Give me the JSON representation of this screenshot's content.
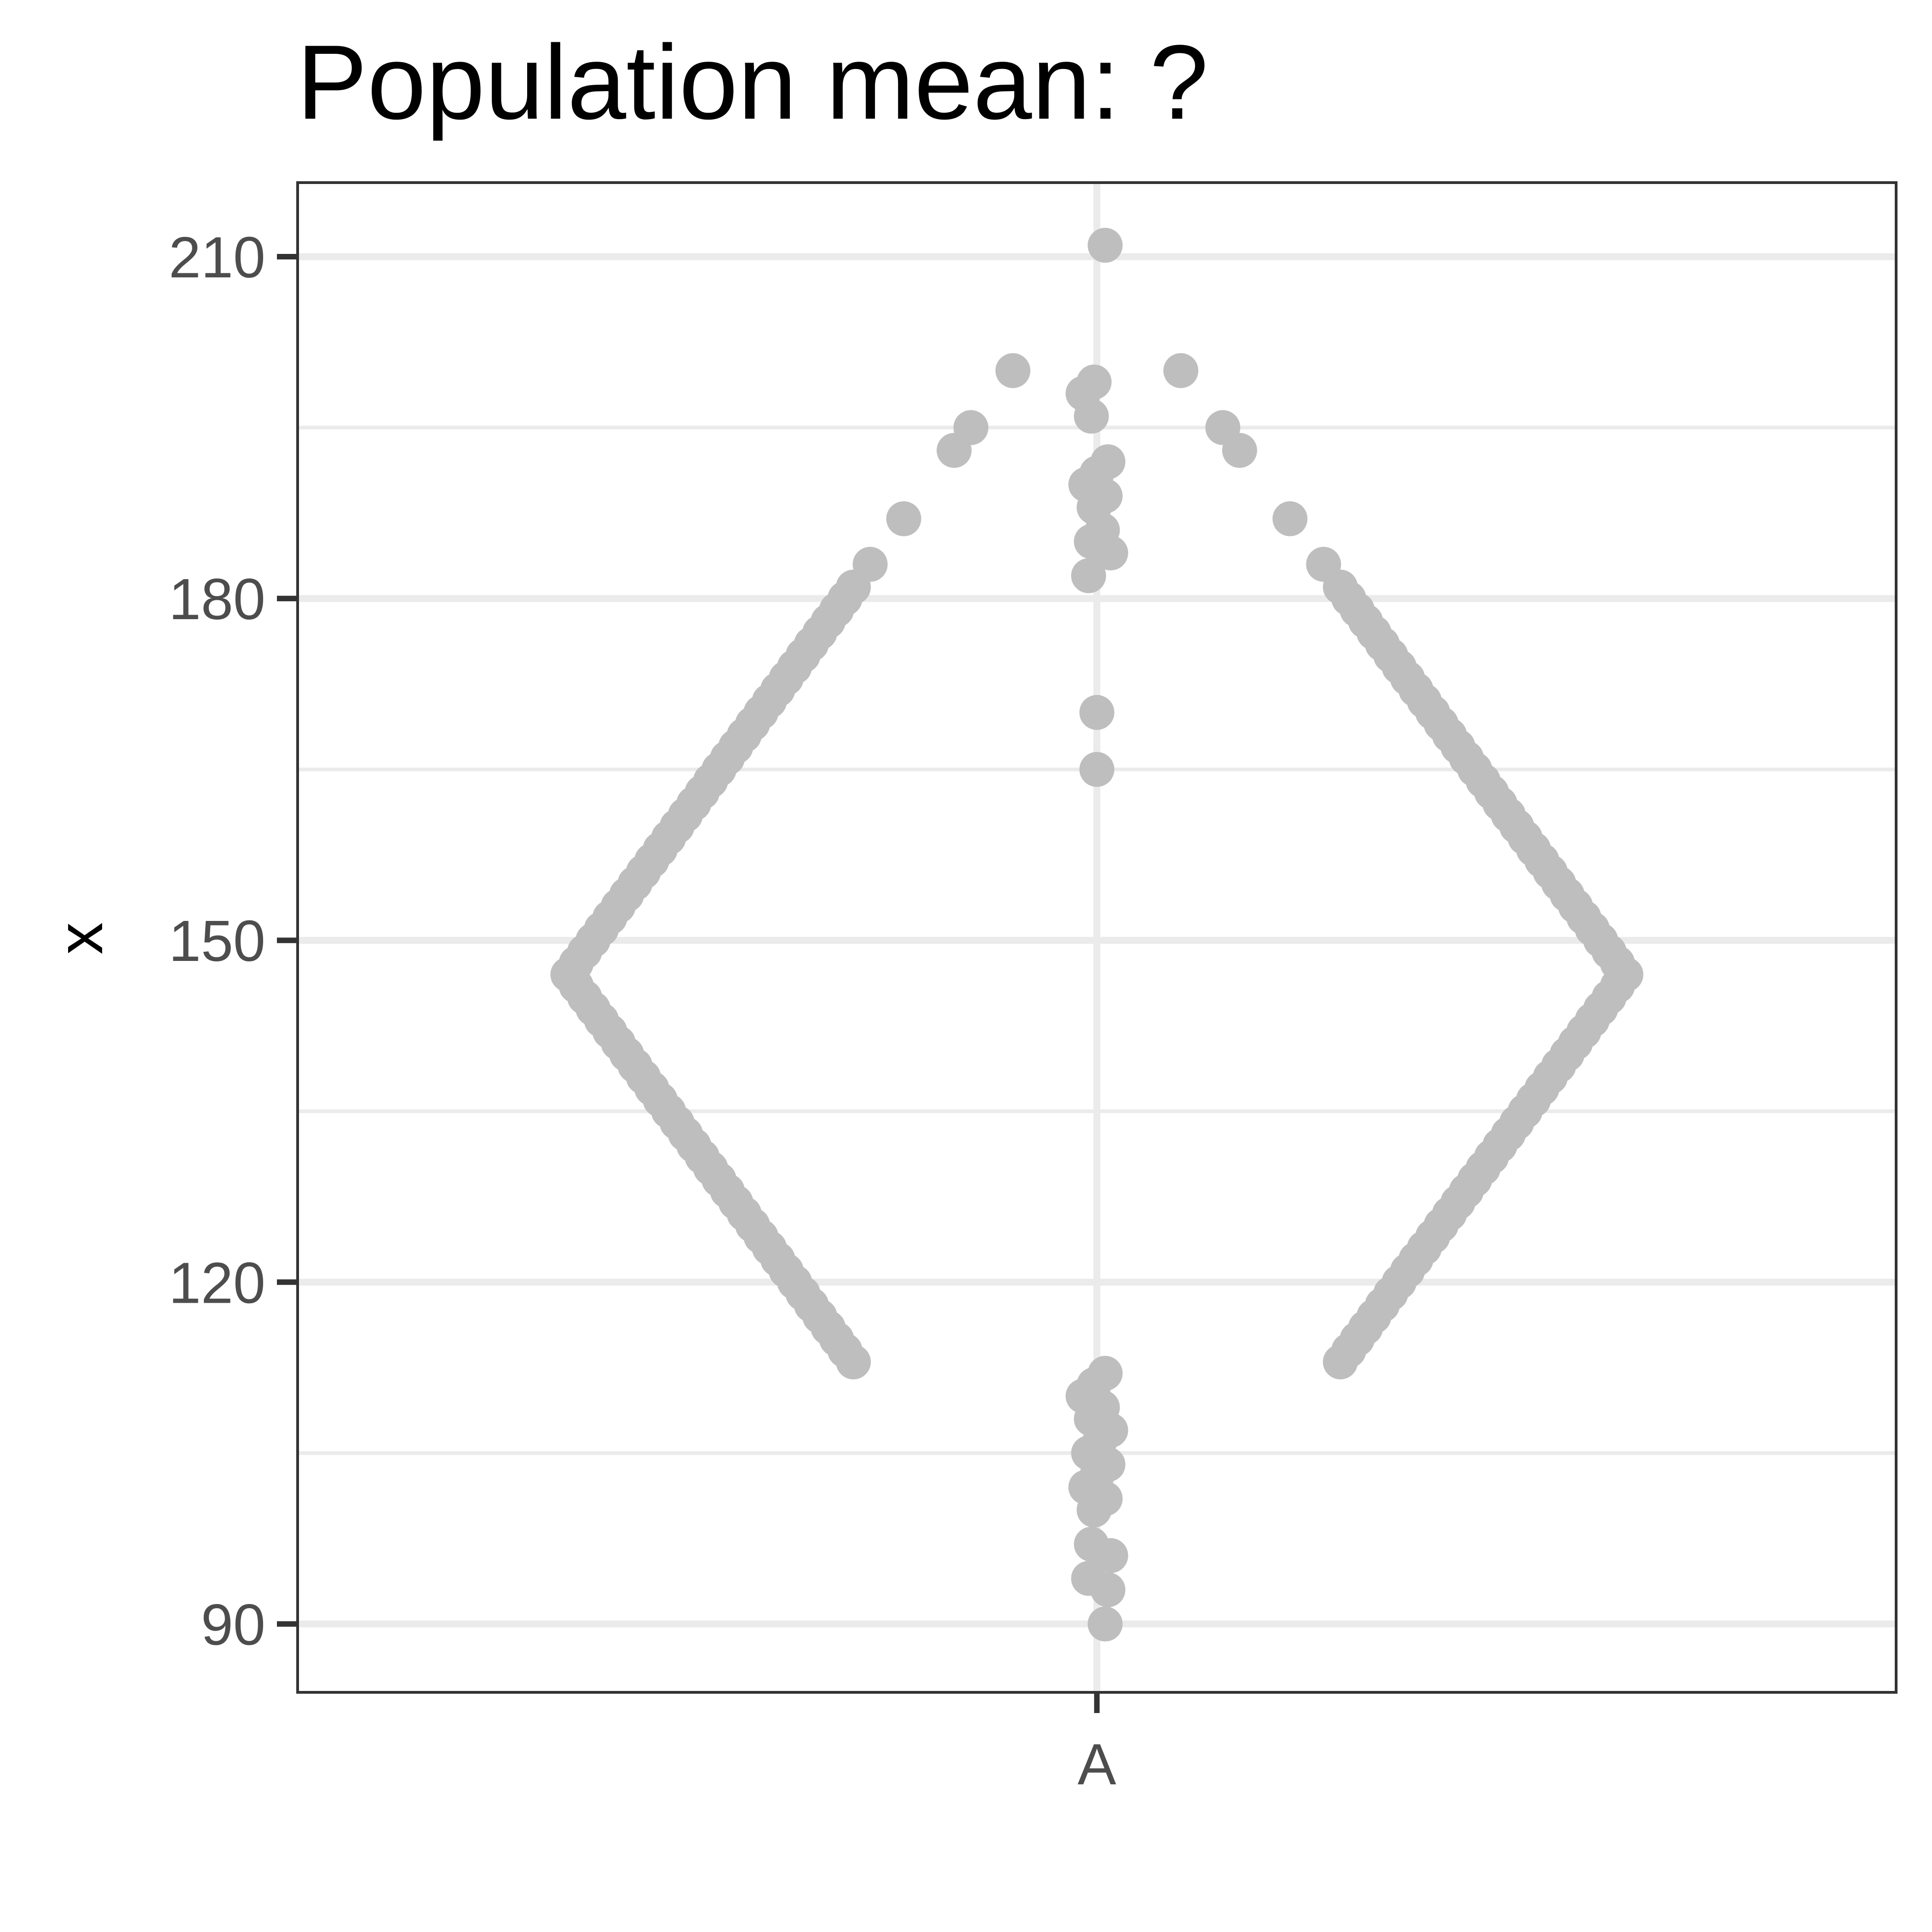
{
  "chart_data": {
    "type": "scatter",
    "style": "beeswarm",
    "title": "Population mean: ?",
    "xlabel": "",
    "ylabel": "x",
    "categories": [
      "A"
    ],
    "ylim": [
      84,
      216.5
    ],
    "yticks": [
      90,
      120,
      150,
      180,
      210
    ],
    "ytick_labels": [
      "90",
      "120",
      "150",
      "180",
      "210"
    ],
    "grid": true,
    "legend": "none",
    "point_color": "#bebebe",
    "panel_border_color": "#333333",
    "series": [
      {
        "category": "A",
        "values": [
          211,
          200,
          200,
          199,
          198,
          196,
          195,
          195,
          193,
          193,
          192,
          191,
          190,
          189,
          188,
          187,
          187,
          186,
          185,
          184,
          183,
          183,
          182,
          181,
          181,
          180,
          180,
          179,
          179,
          178,
          178,
          177,
          177,
          176,
          176,
          175,
          175,
          174,
          174,
          173,
          173,
          172,
          172,
          171,
          171,
          170,
          170,
          170,
          169,
          169,
          168,
          168,
          167,
          167,
          166,
          166,
          165,
          165,
          165,
          164,
          164,
          163,
          163,
          162,
          162,
          161,
          161,
          160,
          160,
          159,
          159,
          158,
          158,
          157,
          157,
          156,
          156,
          155,
          155,
          154,
          154,
          153,
          153,
          152,
          152,
          151,
          151,
          150,
          150,
          149,
          149,
          148,
          148,
          147,
          147,
          146,
          146,
          145,
          145,
          144,
          144,
          143,
          143,
          142,
          142,
          141,
          141,
          140,
          140,
          139,
          139,
          138,
          138,
          137,
          137,
          136,
          136,
          135,
          135,
          134,
          134,
          133,
          133,
          132,
          132,
          131,
          131,
          130,
          130,
          129,
          129,
          128,
          128,
          127,
          127,
          126,
          126,
          125,
          125,
          124,
          124,
          123,
          123,
          122,
          122,
          121,
          121,
          120,
          120,
          119,
          119,
          118,
          118,
          117,
          117,
          116,
          116,
          115,
          115,
          114,
          114,
          113,
          113,
          112,
          111,
          110,
          109,
          108,
          107,
          106,
          105,
          104,
          103,
          102,
          101,
          100,
          97,
          96,
          94,
          93,
          90
        ]
      }
    ]
  }
}
